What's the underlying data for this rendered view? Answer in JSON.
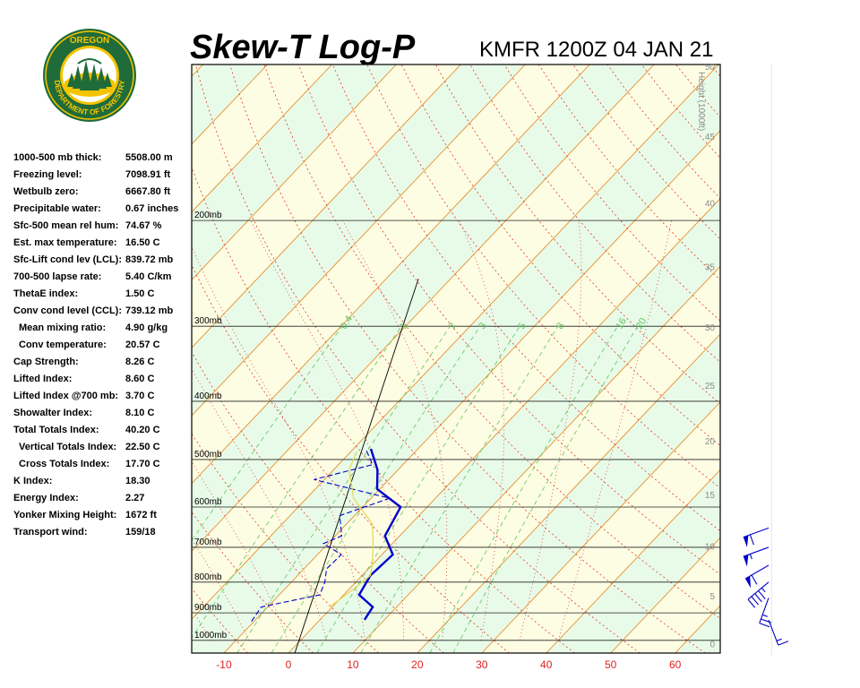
{
  "header": {
    "title": "Skew-T Log-P",
    "station": "KMFR 1200Z 04 JAN 21"
  },
  "logo": {
    "top_text": "OREGON",
    "bottom_text": "DEPARTMENT OF FORESTRY",
    "colors": {
      "ring": "#1f6b3a",
      "ring_text": "#f5c400",
      "field": "#f5c400",
      "trees": "#1f6b3a"
    }
  },
  "indices": [
    {
      "label": "1000-500 mb thick:",
      "value": "5508.00 m"
    },
    {
      "label": "Freezing level:",
      "value": "7098.91 ft"
    },
    {
      "label": "Wetbulb zero:",
      "value": "6667.80 ft"
    },
    {
      "label": "Precipitable water:",
      "value": "0.67 inches"
    },
    {
      "label": "Sfc-500 mean rel hum:",
      "value": "74.67 %"
    },
    {
      "label": "Est. max temperature:",
      "value": "16.50 C"
    },
    {
      "label": "Sfc-Lift cond lev (LCL):",
      "value": "839.72 mb"
    },
    {
      "label": "700-500 lapse rate:",
      "value": "5.40 C/km"
    },
    {
      "label": "ThetaE index:",
      "value": "1.50 C"
    },
    {
      "label": "Conv cond level (CCL):",
      "value": "739.12 mb"
    },
    {
      "label": "Mean mixing ratio:",
      "value": "4.90 g/kg",
      "indent": true
    },
    {
      "label": "Conv temperature:",
      "value": "20.57 C",
      "indent": true
    },
    {
      "label": "Cap Strength:",
      "value": "8.26 C"
    },
    {
      "label": "Lifted Index:",
      "value": "8.60 C"
    },
    {
      "label": "Lifted Index @700 mb:",
      "value": "3.70 C"
    },
    {
      "label": "Showalter Index:",
      "value": "8.10 C"
    },
    {
      "label": "Total Totals Index:",
      "value": "40.20 C"
    },
    {
      "label": "Vertical Totals Index:",
      "value": "22.50 C",
      "indent": true
    },
    {
      "label": "Cross Totals Index:",
      "value": "17.70 C",
      "indent": true
    },
    {
      "label": "K Index:",
      "value": "18.30"
    },
    {
      "label": "Energy Index:",
      "value": "2.27"
    },
    {
      "label": "Yonker Mixing Height:",
      "value": "1672 ft"
    },
    {
      "label": "Transport wind:",
      "value": "159/18"
    }
  ],
  "chart_data": {
    "type": "line",
    "chart_kind": "skew-t log-p",
    "x_unit": "C",
    "xlim": [
      -15,
      67
    ],
    "x_ticks": [
      -10,
      0,
      10,
      20,
      30,
      40,
      50,
      60
    ],
    "pressure_range_mb": [
      1050,
      110
    ],
    "pressure_levels": [
      {
        "p": 200,
        "label": "200mb"
      },
      {
        "p": 300,
        "label": "300mb"
      },
      {
        "p": 400,
        "label": "400mb"
      },
      {
        "p": 500,
        "label": "500mb"
      },
      {
        "p": 600,
        "label": "600mb"
      },
      {
        "p": 700,
        "label": "700mb"
      },
      {
        "p": 800,
        "label": "800mb"
      },
      {
        "p": 900,
        "label": "900mb"
      },
      {
        "p": 1000,
        "label": "1000mb"
      }
    ],
    "height_axis_title": "Height (1000ft)",
    "height_ticks_kft": [
      0,
      5,
      10,
      15,
      20,
      25,
      30,
      35,
      40,
      45,
      50
    ],
    "mixing_ratio_labels_gkg": [
      "0.4",
      "1",
      "2",
      "3",
      "5",
      "8",
      "16",
      "20"
    ],
    "background": {
      "dry_band": "#fdfde3",
      "moist_band": "#e8fbe8"
    },
    "line_colors": {
      "isotherm": "#e78f2e",
      "dry_adiabat": "#e23a2a",
      "moist_adiabat": "#d82424",
      "mixing_ratio": "#5ec45e",
      "isobar": "#222222",
      "temperature": "#0000cc",
      "dewpoint": "#0000cc",
      "parcel": "#e8d85a",
      "reference": "#000000"
    },
    "series": [
      {
        "name": "",
        "kind": "temperature",
        "points": [
          [
            924,
            6.9
          ],
          [
            880,
            6.3
          ],
          [
            840,
            2.4
          ],
          [
            780,
            1.3
          ],
          [
            720,
            1.7
          ],
          [
            670,
            -2.3
          ],
          [
            600,
            -4.1
          ],
          [
            560,
            -10.4
          ],
          [
            520,
            -13.2
          ],
          [
            480,
            -17.3
          ]
        ]
      },
      {
        "name": "",
        "kind": "dewpoint",
        "points": [
          [
            930,
            -10.4
          ],
          [
            880,
            -11.0
          ],
          [
            840,
            -3.7
          ],
          [
            800,
            -4.8
          ],
          [
            760,
            -6.5
          ],
          [
            720,
            -6.3
          ],
          [
            690,
            -10.7
          ],
          [
            670,
            -9.0
          ],
          [
            620,
            -12.3
          ],
          [
            580,
            -7.1
          ],
          [
            540,
            -21.6
          ],
          [
            510,
            -14.7
          ],
          [
            480,
            -18.1
          ]
        ]
      },
      {
        "name": "",
        "kind": "parcel",
        "points": [
          [
            880,
            -0.4
          ],
          [
            820,
            0.7
          ],
          [
            780,
            1.3
          ],
          [
            740,
            -0.4
          ],
          [
            690,
            -3.0
          ],
          [
            640,
            -6.0
          ],
          [
            580,
            -12.7
          ],
          [
            520,
            -17.6
          ],
          [
            485,
            -19.1
          ]
        ]
      }
    ],
    "wind_barbs": [
      {
        "p": 925,
        "direction_deg": 159,
        "speed_kt": 18
      },
      {
        "p": 850,
        "direction_deg": 200,
        "speed_kt": 25
      },
      {
        "p": 800,
        "direction_deg": 230,
        "speed_kt": 45
      },
      {
        "p": 750,
        "direction_deg": 240,
        "speed_kt": 60
      },
      {
        "p": 700,
        "direction_deg": 250,
        "speed_kt": 55
      },
      {
        "p": 650,
        "direction_deg": 250,
        "speed_kt": 60
      }
    ]
  }
}
